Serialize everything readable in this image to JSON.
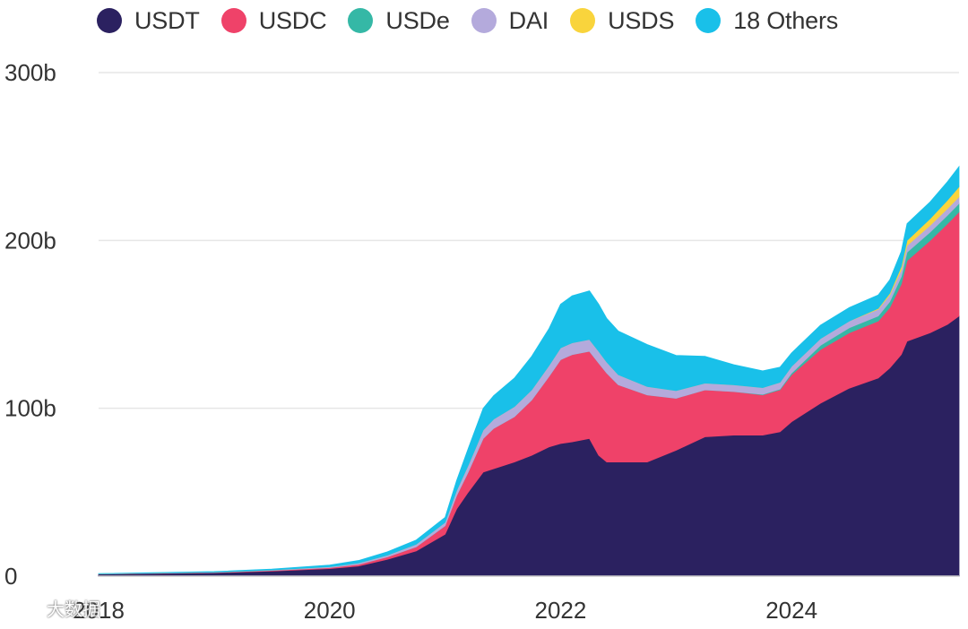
{
  "chart_data": {
    "type": "area",
    "stacked": true,
    "title": "",
    "xlabel": "",
    "ylabel": "",
    "x_ticks": [
      "2018",
      "2020",
      "2022",
      "2024"
    ],
    "x_tick_values": [
      2018.0,
      2020.0,
      2022.0,
      2024.0
    ],
    "xlim": [
      2018.0,
      2025.45
    ],
    "ylim": [
      0,
      300
    ],
    "y_ticks": [
      0,
      100,
      200,
      300
    ],
    "y_tick_labels": [
      "0",
      "100b",
      "200b",
      "300b"
    ],
    "grid": "horizontal",
    "legend_position": "top",
    "x": [
      2018.0,
      2019.0,
      2019.5,
      2020.0,
      2020.25,
      2020.5,
      2020.75,
      2021.0,
      2021.1,
      2021.2,
      2021.33,
      2021.42,
      2021.6,
      2021.75,
      2021.9,
      2022.0,
      2022.1,
      2022.25,
      2022.33,
      2022.4,
      2022.5,
      2022.75,
      2023.0,
      2023.25,
      2023.5,
      2023.75,
      2023.9,
      2024.0,
      2024.25,
      2024.5,
      2024.75,
      2024.85,
      2024.95,
      2025.0,
      2025.2,
      2025.35,
      2025.45
    ],
    "series": [
      {
        "name": "USDT",
        "color": "#2b2160",
        "values": [
          1.2,
          2.0,
          3.0,
          4.5,
          6.0,
          10.0,
          15.0,
          25.0,
          40.0,
          50.0,
          62.0,
          64.0,
          68.0,
          72.0,
          77.0,
          79.0,
          80.0,
          82.0,
          72.0,
          68.0,
          68.0,
          68.0,
          75.0,
          83.0,
          84.0,
          84.0,
          86.0,
          92.0,
          103.0,
          112.0,
          118.0,
          124.0,
          132.0,
          140.0,
          145.0,
          150.0,
          155.0
        ]
      },
      {
        "name": "USDC",
        "color": "#ef4269",
        "values": [
          0.1,
          0.2,
          0.4,
          0.6,
          1.0,
          1.5,
          2.5,
          5.0,
          8.0,
          12.0,
          20.0,
          24.0,
          27.0,
          33.0,
          42.0,
          50.0,
          52.0,
          52.0,
          55.0,
          53.0,
          46.0,
          40.0,
          31.0,
          28.0,
          26.0,
          24.0,
          25.0,
          28.0,
          32.0,
          33.0,
          34.0,
          36.0,
          42.0,
          48.0,
          55.0,
          60.0,
          62.0
        ]
      },
      {
        "name": "USDe",
        "color": "#35b8a6",
        "values": [
          0,
          0,
          0,
          0,
          0,
          0,
          0,
          0,
          0,
          0,
          0,
          0,
          0,
          0,
          0,
          0,
          0,
          0,
          0,
          0,
          0,
          0,
          0,
          0,
          0,
          0.3,
          0.5,
          1.0,
          2.5,
          3.0,
          3.0,
          3.5,
          4.5,
          5.0,
          5.0,
          5.0,
          5.0
        ]
      },
      {
        "name": "DAI",
        "color": "#b4aadc",
        "values": [
          0.1,
          0.2,
          0.3,
          0.5,
          0.8,
          1.0,
          1.5,
          2.0,
          3.0,
          4.0,
          5.0,
          5.5,
          6.0,
          6.0,
          6.5,
          7.0,
          7.0,
          7.0,
          7.0,
          6.5,
          6.0,
          5.0,
          4.5,
          4.0,
          4.0,
          4.0,
          4.0,
          4.0,
          4.0,
          4.0,
          4.0,
          4.0,
          4.0,
          4.0,
          4.0,
          4.0,
          4.0
        ]
      },
      {
        "name": "USDS",
        "color": "#f9d43c",
        "values": [
          0,
          0,
          0,
          0,
          0,
          0,
          0,
          0,
          0,
          0,
          0,
          0,
          0,
          0,
          0,
          0,
          0,
          0,
          0,
          0,
          0,
          0,
          0,
          0,
          0,
          0,
          0,
          0,
          0,
          0,
          0.5,
          1.0,
          2.0,
          3.0,
          4.0,
          5.0,
          6.0
        ]
      },
      {
        "name": "18 Others",
        "color": "#19c0e9",
        "values": [
          0.1,
          0.3,
          0.5,
          1.0,
          1.5,
          2.0,
          2.5,
          3.0,
          6.0,
          10.0,
          13.0,
          14.0,
          17.0,
          20.0,
          22.0,
          26.0,
          28.0,
          29.0,
          28.0,
          26.0,
          26.0,
          25.0,
          21.0,
          16.0,
          12.0,
          10.0,
          9.0,
          8.0,
          8.0,
          8.0,
          8.0,
          8.0,
          9.0,
          10.0,
          10.0,
          11.0,
          12.0
        ]
      }
    ]
  },
  "watermark": {
    "text": "大数据"
  }
}
